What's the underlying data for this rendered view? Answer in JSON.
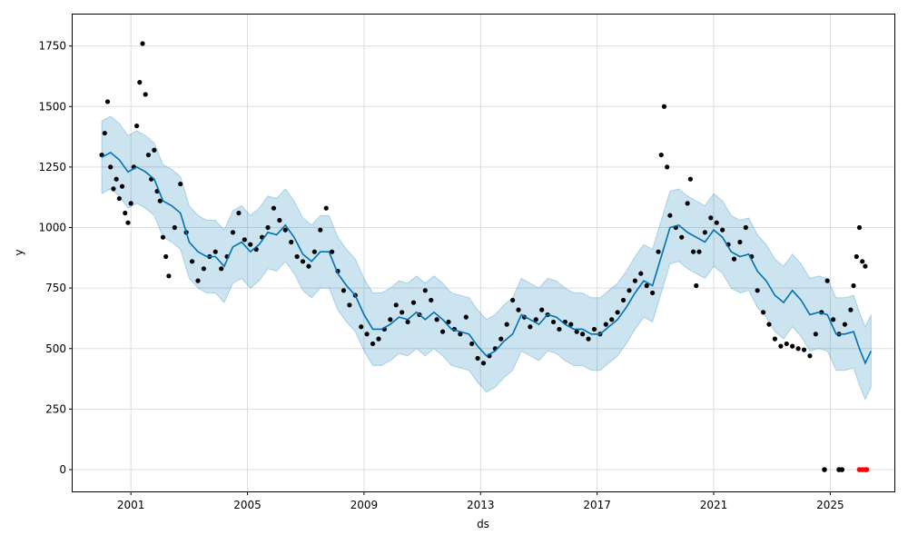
{
  "chart_data": {
    "type": "line",
    "xlabel": "ds",
    "ylabel": "y",
    "xlim": [
      1999.0,
      2027.2
    ],
    "ylim": [
      -90,
      1880
    ],
    "x_ticks": [
      2001,
      2005,
      2009,
      2013,
      2017,
      2021,
      2025
    ],
    "x_tick_labels": [
      "2001",
      "2005",
      "2009",
      "2013",
      "2017",
      "2021",
      "2025"
    ],
    "y_ticks": [
      0,
      250,
      500,
      750,
      1000,
      1250,
      1500,
      1750
    ],
    "y_tick_labels": [
      "0",
      "250",
      "500",
      "750",
      "1000",
      "1250",
      "1500",
      "1750"
    ],
    "grid": true,
    "colors": {
      "observed": "#000000",
      "forecast": "#0072b2",
      "uncertainty": "#0072b2",
      "anomaly": "#ff0000"
    },
    "series": [
      {
        "kind": "observed",
        "points": [
          [
            2000.0,
            1300
          ],
          [
            2000.1,
            1390
          ],
          [
            2000.2,
            1520
          ],
          [
            2000.3,
            1250
          ],
          [
            2000.4,
            1160
          ],
          [
            2000.5,
            1200
          ],
          [
            2000.6,
            1120
          ],
          [
            2000.7,
            1170
          ],
          [
            2000.8,
            1060
          ],
          [
            2000.9,
            1020
          ],
          [
            2001.0,
            1100
          ],
          [
            2001.1,
            1250
          ],
          [
            2001.2,
            1420
          ],
          [
            2001.3,
            1600
          ],
          [
            2001.4,
            1760
          ],
          [
            2001.5,
            1550
          ],
          [
            2001.6,
            1300
          ],
          [
            2001.7,
            1200
          ],
          [
            2001.8,
            1320
          ],
          [
            2001.9,
            1150
          ],
          [
            2002.0,
            1110
          ],
          [
            2002.1,
            960
          ],
          [
            2002.2,
            880
          ],
          [
            2002.3,
            800
          ],
          [
            2002.5,
            1000
          ],
          [
            2002.7,
            1180
          ],
          [
            2002.9,
            980
          ],
          [
            2003.1,
            860
          ],
          [
            2003.3,
            780
          ],
          [
            2003.5,
            830
          ],
          [
            2003.7,
            880
          ],
          [
            2003.9,
            900
          ],
          [
            2004.1,
            830
          ],
          [
            2004.3,
            880
          ],
          [
            2004.5,
            980
          ],
          [
            2004.7,
            1060
          ],
          [
            2004.9,
            950
          ],
          [
            2005.1,
            930
          ],
          [
            2005.3,
            910
          ],
          [
            2005.5,
            960
          ],
          [
            2005.7,
            1000
          ],
          [
            2005.9,
            1080
          ],
          [
            2006.1,
            1030
          ],
          [
            2006.3,
            990
          ],
          [
            2006.5,
            940
          ],
          [
            2006.7,
            880
          ],
          [
            2006.9,
            860
          ],
          [
            2007.1,
            840
          ],
          [
            2007.3,
            900
          ],
          [
            2007.5,
            990
          ],
          [
            2007.7,
            1080
          ],
          [
            2007.9,
            900
          ],
          [
            2008.1,
            820
          ],
          [
            2008.3,
            740
          ],
          [
            2008.5,
            680
          ],
          [
            2008.7,
            720
          ],
          [
            2008.9,
            590
          ],
          [
            2009.1,
            560
          ],
          [
            2009.3,
            520
          ],
          [
            2009.5,
            540
          ],
          [
            2009.7,
            580
          ],
          [
            2009.9,
            620
          ],
          [
            2010.1,
            680
          ],
          [
            2010.3,
            650
          ],
          [
            2010.5,
            610
          ],
          [
            2010.7,
            690
          ],
          [
            2010.9,
            640
          ],
          [
            2011.1,
            740
          ],
          [
            2011.3,
            700
          ],
          [
            2011.5,
            620
          ],
          [
            2011.7,
            570
          ],
          [
            2011.9,
            610
          ],
          [
            2012.1,
            580
          ],
          [
            2012.3,
            560
          ],
          [
            2012.5,
            630
          ],
          [
            2012.7,
            520
          ],
          [
            2012.9,
            460
          ],
          [
            2013.1,
            440
          ],
          [
            2013.3,
            470
          ],
          [
            2013.5,
            500
          ],
          [
            2013.7,
            540
          ],
          [
            2013.9,
            600
          ],
          [
            2014.1,
            700
          ],
          [
            2014.3,
            660
          ],
          [
            2014.5,
            630
          ],
          [
            2014.7,
            590
          ],
          [
            2014.9,
            620
          ],
          [
            2015.1,
            660
          ],
          [
            2015.3,
            640
          ],
          [
            2015.5,
            610
          ],
          [
            2015.7,
            580
          ],
          [
            2015.9,
            610
          ],
          [
            2016.1,
            600
          ],
          [
            2016.3,
            570
          ],
          [
            2016.5,
            560
          ],
          [
            2016.7,
            540
          ],
          [
            2016.9,
            580
          ],
          [
            2017.1,
            560
          ],
          [
            2017.3,
            600
          ],
          [
            2017.5,
            620
          ],
          [
            2017.7,
            650
          ],
          [
            2017.9,
            700
          ],
          [
            2018.1,
            740
          ],
          [
            2018.3,
            780
          ],
          [
            2018.5,
            810
          ],
          [
            2018.7,
            760
          ],
          [
            2018.9,
            730
          ],
          [
            2019.1,
            900
          ],
          [
            2019.2,
            1300
          ],
          [
            2019.3,
            1500
          ],
          [
            2019.4,
            1250
          ],
          [
            2019.5,
            1050
          ],
          [
            2019.7,
            1000
          ],
          [
            2019.9,
            960
          ],
          [
            2020.1,
            1100
          ],
          [
            2020.2,
            1200
          ],
          [
            2020.3,
            900
          ],
          [
            2020.4,
            760
          ],
          [
            2020.5,
            900
          ],
          [
            2020.7,
            980
          ],
          [
            2020.9,
            1040
          ],
          [
            2021.1,
            1020
          ],
          [
            2021.3,
            990
          ],
          [
            2021.5,
            930
          ],
          [
            2021.7,
            870
          ],
          [
            2021.9,
            940
          ],
          [
            2022.1,
            1000
          ],
          [
            2022.3,
            880
          ],
          [
            2022.5,
            740
          ],
          [
            2022.7,
            650
          ],
          [
            2022.9,
            600
          ],
          [
            2023.1,
            540
          ],
          [
            2023.3,
            510
          ],
          [
            2023.5,
            520
          ],
          [
            2023.7,
            510
          ],
          [
            2023.9,
            500
          ],
          [
            2024.1,
            495
          ],
          [
            2024.3,
            470
          ],
          [
            2024.5,
            560
          ],
          [
            2024.7,
            650
          ],
          [
            2024.9,
            780
          ],
          [
            2025.1,
            620
          ],
          [
            2025.3,
            560
          ],
          [
            2025.5,
            600
          ],
          [
            2025.7,
            660
          ],
          [
            2025.8,
            760
          ],
          [
            2025.9,
            880
          ],
          [
            2026.0,
            1000
          ],
          [
            2026.1,
            860
          ],
          [
            2026.2,
            840
          ]
        ]
      },
      {
        "kind": "forecast",
        "points": [
          [
            2000.0,
            1290
          ],
          [
            2000.3,
            1310
          ],
          [
            2000.6,
            1280
          ],
          [
            2000.9,
            1230
          ],
          [
            2001.2,
            1250
          ],
          [
            2001.5,
            1230
          ],
          [
            2001.8,
            1200
          ],
          [
            2002.1,
            1110
          ],
          [
            2002.4,
            1090
          ],
          [
            2002.7,
            1060
          ],
          [
            2003.0,
            940
          ],
          [
            2003.3,
            900
          ],
          [
            2003.6,
            880
          ],
          [
            2003.9,
            880
          ],
          [
            2004.2,
            840
          ],
          [
            2004.5,
            920
          ],
          [
            2004.8,
            940
          ],
          [
            2005.1,
            900
          ],
          [
            2005.4,
            930
          ],
          [
            2005.7,
            980
          ],
          [
            2006.0,
            970
          ],
          [
            2006.3,
            1010
          ],
          [
            2006.6,
            960
          ],
          [
            2006.9,
            890
          ],
          [
            2007.2,
            860
          ],
          [
            2007.5,
            900
          ],
          [
            2007.8,
            900
          ],
          [
            2008.1,
            810
          ],
          [
            2008.4,
            760
          ],
          [
            2008.7,
            720
          ],
          [
            2009.0,
            640
          ],
          [
            2009.3,
            580
          ],
          [
            2009.6,
            580
          ],
          [
            2009.9,
            600
          ],
          [
            2010.2,
            630
          ],
          [
            2010.5,
            620
          ],
          [
            2010.8,
            650
          ],
          [
            2011.1,
            620
          ],
          [
            2011.4,
            650
          ],
          [
            2011.7,
            620
          ],
          [
            2012.0,
            580
          ],
          [
            2012.3,
            570
          ],
          [
            2012.6,
            560
          ],
          [
            2012.9,
            510
          ],
          [
            2013.2,
            470
          ],
          [
            2013.5,
            490
          ],
          [
            2013.8,
            530
          ],
          [
            2014.1,
            560
          ],
          [
            2014.4,
            640
          ],
          [
            2014.7,
            620
          ],
          [
            2015.0,
            600
          ],
          [
            2015.3,
            640
          ],
          [
            2015.6,
            630
          ],
          [
            2015.9,
            600
          ],
          [
            2016.2,
            580
          ],
          [
            2016.5,
            580
          ],
          [
            2016.8,
            560
          ],
          [
            2017.1,
            560
          ],
          [
            2017.4,
            590
          ],
          [
            2017.7,
            620
          ],
          [
            2018.0,
            670
          ],
          [
            2018.3,
            730
          ],
          [
            2018.6,
            780
          ],
          [
            2018.9,
            760
          ],
          [
            2019.2,
            880
          ],
          [
            2019.5,
            1000
          ],
          [
            2019.8,
            1010
          ],
          [
            2020.1,
            980
          ],
          [
            2020.4,
            960
          ],
          [
            2020.7,
            940
          ],
          [
            2021.0,
            990
          ],
          [
            2021.3,
            960
          ],
          [
            2021.6,
            900
          ],
          [
            2021.9,
            880
          ],
          [
            2022.2,
            890
          ],
          [
            2022.5,
            820
          ],
          [
            2022.8,
            780
          ],
          [
            2023.1,
            720
          ],
          [
            2023.4,
            690
          ],
          [
            2023.7,
            740
          ],
          [
            2024.0,
            700
          ],
          [
            2024.3,
            640
          ],
          [
            2024.6,
            650
          ],
          [
            2024.9,
            640
          ],
          [
            2025.2,
            560
          ],
          [
            2025.5,
            560
          ],
          [
            2025.8,
            570
          ],
          [
            2026.0,
            500
          ],
          [
            2026.2,
            440
          ],
          [
            2026.4,
            490
          ]
        ],
        "band_halfwidth": 150
      },
      {
        "kind": "anomaly",
        "points": [
          [
            2024.8,
            0
          ],
          [
            2025.3,
            0
          ],
          [
            2025.4,
            0
          ],
          [
            2026.0,
            0
          ],
          [
            2026.1,
            0
          ],
          [
            2026.2,
            0
          ],
          [
            2026.25,
            0
          ]
        ]
      }
    ]
  }
}
